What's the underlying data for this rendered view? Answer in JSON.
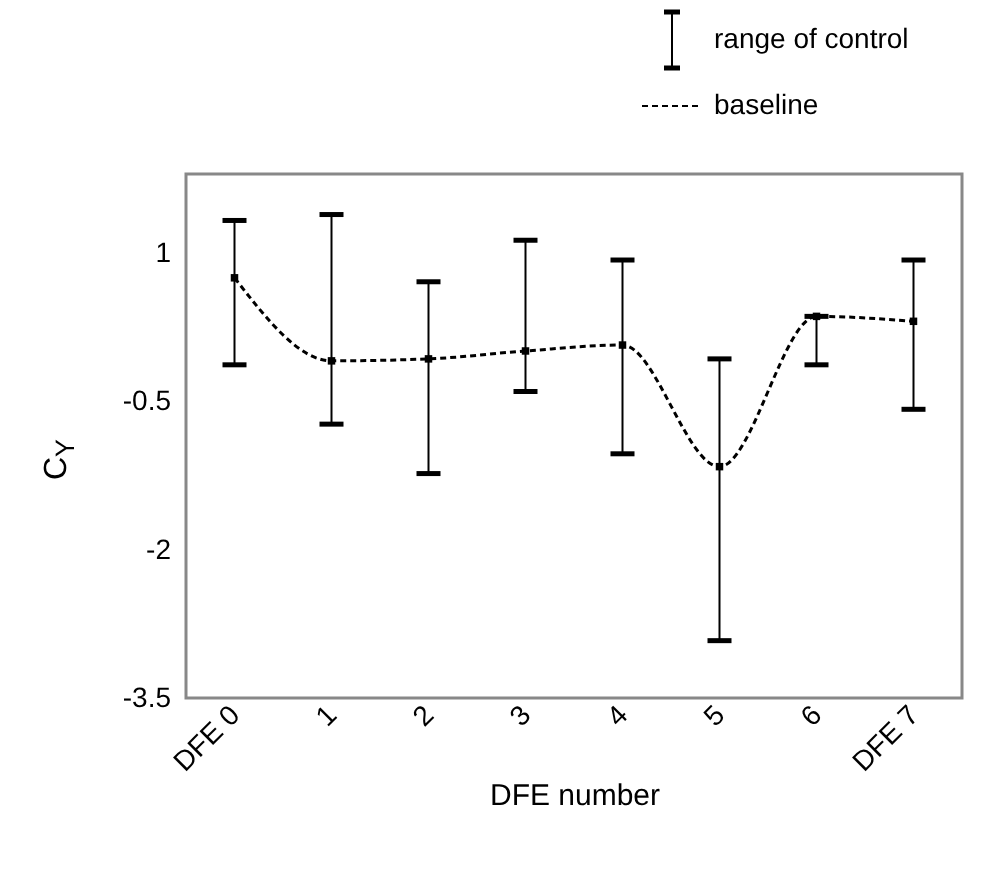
{
  "chart_data": {
    "type": "line",
    "xlabel": "DFE number",
    "ylabel": "C$_{Y}$",
    "categories": [
      "DFE 0",
      "1",
      "2",
      "3",
      "4",
      "5",
      "6",
      "DFE 7"
    ],
    "ylim": [
      -3.5,
      1.8
    ],
    "yticks": [
      1,
      -0.5,
      -2,
      -3.5
    ],
    "grid": false,
    "legend": "top right",
    "series": [
      {
        "name": "range of control",
        "type": "scatter",
        "marker": "square",
        "color": "#000000",
        "values": [
          0.75,
          -0.09,
          -0.07,
          0.01,
          0.07,
          -1.16,
          0.36,
          0.31
        ],
        "errors": [
          [
            -0.13,
            1.33
          ],
          [
            -0.73,
            1.39
          ],
          [
            -1.23,
            0.71
          ],
          [
            -0.4,
            1.13
          ],
          [
            -1.03,
            0.93
          ],
          [
            -2.92,
            -0.07
          ],
          [
            -0.13,
            0.36
          ],
          [
            -0.58,
            0.93
          ]
        ]
      },
      {
        "name": "baseline",
        "type": "line",
        "line_style": "dashed",
        "color": "#000000",
        "values": [
          0.75,
          -0.09,
          -0.07,
          0.01,
          0.07,
          -1.16,
          0.36,
          0.31
        ]
      }
    ]
  }
}
